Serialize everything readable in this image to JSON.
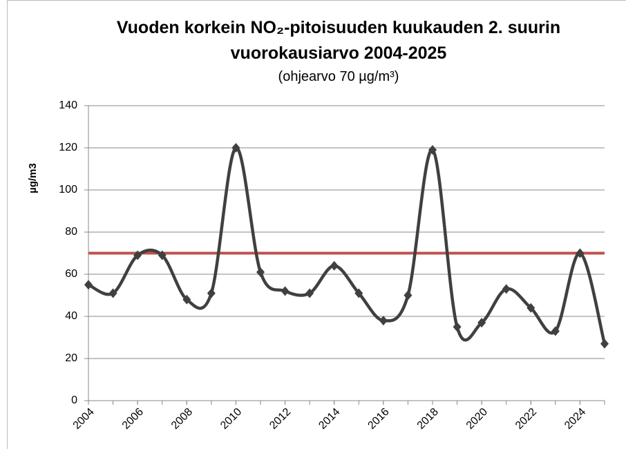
{
  "chart_data": {
    "type": "line",
    "title": [
      "Vuoden korkein NO₂-pitoisuuden kuukauden 2. suurin",
      "vuorokausiarvo 2004-2025"
    ],
    "subtitle": "(ohjearvo 70 µg/m³)",
    "y_label": "µg/m3",
    "x": [
      2004,
      2005,
      2006,
      2007,
      2008,
      2009,
      2010,
      2011,
      2012,
      2013,
      2014,
      2015,
      2016,
      2017,
      2018,
      2019,
      2020,
      2021,
      2022,
      2023,
      2024,
      2025
    ],
    "series": [
      {
        "color": "#404040",
        "values": [
          55,
          51,
          69,
          69,
          48,
          51,
          120,
          61,
          52,
          51,
          64,
          51,
          38,
          50,
          119,
          35,
          37,
          53,
          44,
          33,
          70,
          27
        ]
      }
    ],
    "reference_line": {
      "value": 70,
      "color": "#c0504d"
    },
    "xlim": [
      2004,
      2025
    ],
    "xticks": [
      2004,
      2006,
      2008,
      2010,
      2012,
      2014,
      2016,
      2018,
      2020,
      2022,
      2024
    ],
    "ylim": [
      0,
      140
    ],
    "yticks": [
      0,
      20,
      40,
      60,
      80,
      100,
      120,
      140
    ],
    "grid": true
  }
}
